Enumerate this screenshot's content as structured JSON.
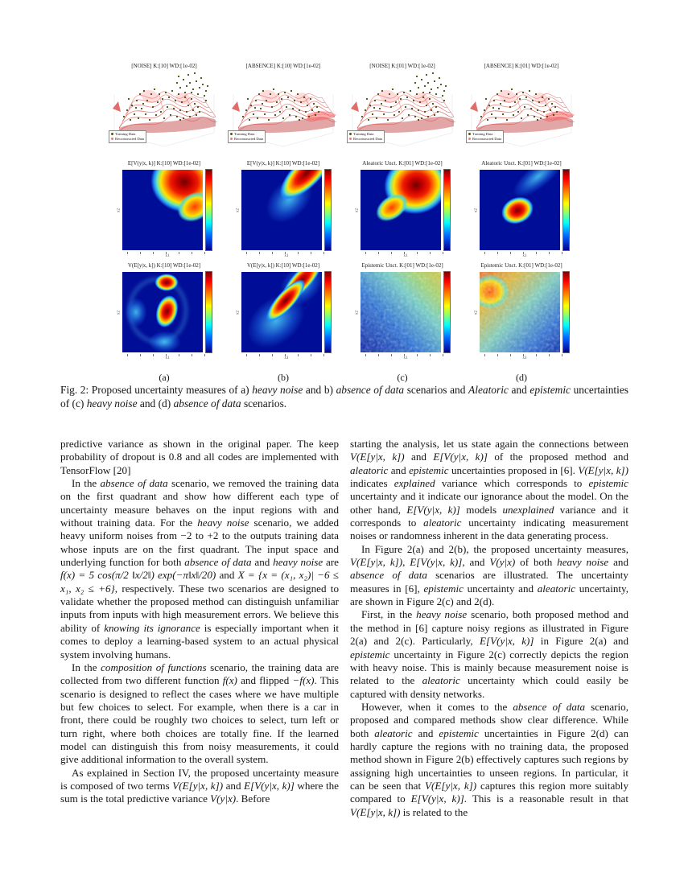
{
  "figure": {
    "columns": [
      {
        "label": "(a)",
        "surface_title": "[NOISE]  K:[10]  WD:[1e-02]",
        "mid_title": "E[V(y|x, k)]  K:[10]  WD:[1e-02]",
        "bottom_title": "V(E[y|x, k])  K:[10]  WD:[1e-02]"
      },
      {
        "label": "(b)",
        "surface_title": "[ABSENCE]  K:[10]  WD:[1e-02]",
        "mid_title": "E[V(y|x, k)]  K:[10]  WD:[1e-02]",
        "bottom_title": "V(E[y|x, k])  K:[10]  WD:[1e-02]"
      },
      {
        "label": "(c)",
        "surface_title": "[NOISE]  K:[01]  WD:[1e-02]",
        "mid_title": "Aleatoric Unct.  K:[01]  WD:[1e-02]",
        "bottom_title": "Epistemic Unct.  K:[01]  WD:[1e-02]"
      },
      {
        "label": "(d)",
        "surface_title": "[ABSENCE]  K:[01]  WD:[1e-02]",
        "mid_title": "Aleatoric Unct.  K:[01]  WD:[1e-02]",
        "bottom_title": "Epistemic Unct.  K:[01]  WD:[1e-02]"
      }
    ],
    "legend": {
      "training": "Training Data",
      "reconstructed": "Reconstructed Data"
    },
    "axis": {
      "x": "x1",
      "y": "x2"
    },
    "colors": {
      "jet_high": "#7f0000",
      "jet_mid": "#ffff00",
      "jet_low": "#00008f",
      "surface": "#cc2222",
      "training_dots": "#414f0b"
    }
  },
  "caption_parts": [
    "Fig. 2: Proposed uncertainty measures of a) ",
    {
      "i": "heavy noise"
    },
    " and b) ",
    {
      "i": "absence of data"
    },
    " scenarios and ",
    {
      "i": "Aleatoric"
    },
    " and ",
    {
      "i": "epistemic"
    },
    " uncertainties of (c) ",
    {
      "i": "heavy noise"
    },
    " and (d) ",
    {
      "i": "absence of data"
    },
    " scenarios."
  ],
  "body": {
    "left": [
      [
        "predictive variance as shown in the original paper. The keep probability of dropout is 0.8 and all codes are implemented with TensorFlow [20]"
      ],
      [
        "In the ",
        {
          "i": "absence of data"
        },
        " scenario, we removed the training data on the first quadrant and show how different each type of uncertainty measure behaves on the input regions with and without training data. For the ",
        {
          "i": "heavy noise"
        },
        " scenario, we added heavy uniform noises from −2 to +2 to the outputs training data whose inputs are on the first quadrant. The input space and underlying function for both ",
        {
          "i": "absence of data"
        },
        " and ",
        {
          "i": "heavy noise"
        },
        " are ",
        {
          "m": "f(x) = 5 cos(π/2 ‖x/2‖) exp(−π‖x‖/20)"
        },
        " and ",
        {
          "m": "X = {x = (x₁, x₂)| −6 ≤ x₁, x₂ ≤ +6}"
        },
        ", respectively. These two scenarios are designed to validate whether the proposed method can distinguish unfamiliar inputs from inputs with high measurement errors. We believe this ability of ",
        {
          "i": "knowing its ignorance"
        },
        " is especially important when it comes to deploy a learning-based system to an actual physical system involving humans."
      ],
      [
        "In the ",
        {
          "i": "composition of functions"
        },
        " scenario, the training data are collected from two different function ",
        {
          "m": "f(x)"
        },
        " and flipped ",
        {
          "m": "−f(x)"
        },
        ". This scenario is designed to reflect the cases where we have multiple but few choices to select. For example, when there is a car in front, there could be roughly two choices to select, turn left or turn right, where both choices are totally fine. If the learned model can distinguish this from noisy measurements, it could give additional information to the overall system."
      ],
      [
        "As explained in Section IV, the proposed uncertainty measure is composed of two terms ",
        {
          "m": "V(E[y|x, k])"
        },
        " and ",
        {
          "m": "E[V(y|x, k)]"
        },
        " where the sum is the total predictive variance ",
        {
          "m": "V(y|x)"
        },
        ". Before"
      ]
    ],
    "right": [
      [
        "starting the analysis, let us state again the connections between ",
        {
          "m": "V(E[y|x, k])"
        },
        " and ",
        {
          "m": "E[V(y|x, k)]"
        },
        " of the proposed method and ",
        {
          "i": "aleatoric"
        },
        " and ",
        {
          "i": "epistemic"
        },
        " uncertainties proposed in [6]. ",
        {
          "m": "V(E[y|x, k])"
        },
        " indicates ",
        {
          "i": "explained"
        },
        " variance which corresponds to ",
        {
          "i": "epistemic"
        },
        " uncertainty and it indicate our ignorance about the model. On the other hand, ",
        {
          "m": "E[V(y|x, k)]"
        },
        " models ",
        {
          "i": "unexplained"
        },
        " variance and it corresponds to ",
        {
          "i": "aleatoric"
        },
        " uncertainty indicating measurement noises or randomness inherent in the data generating process."
      ],
      [
        "In Figure 2(a) and 2(b), the proposed uncertainty measures, ",
        {
          "m": "V(E[y|x, k])"
        },
        ", ",
        {
          "m": "E[V(y|x, k)]"
        },
        ", and ",
        {
          "m": "V(y|x)"
        },
        " of both ",
        {
          "i": "heavy noise"
        },
        " and ",
        {
          "i": "absence of data"
        },
        " scenarios are illustrated. The uncertainty measures in [6], ",
        {
          "i": "epistemic"
        },
        " uncertainty and ",
        {
          "i": "aleatoric"
        },
        " uncertainty, are shown in Figure 2(c) and 2(d)."
      ],
      [
        "First, in the ",
        {
          "i": "heavy noise"
        },
        " scenario, both proposed method and the method in [6] capture noisy regions as illustrated in Figure 2(a) and 2(c). Particularly, ",
        {
          "m": "E[V(y|x, k)]"
        },
        " in Figure 2(a) and ",
        {
          "i": "epistemic"
        },
        " uncertainty in Figure 2(c) correctly depicts the region with heavy noise. This is mainly because measurement noise is related to the ",
        {
          "i": "aleatoric"
        },
        " uncertainty which could easily be captured with density networks."
      ],
      [
        "However, when it comes to the ",
        {
          "i": "absence of data"
        },
        " scenario, proposed and compared methods show clear difference. While both ",
        {
          "i": "aleatoric"
        },
        " and ",
        {
          "i": "epistemic"
        },
        " uncertainties in Figure 2(d) can hardly capture the regions with no training data, the proposed method shown in Figure 2(b) effectively captures such regions by assigning high uncertainties to unseen regions. In particular, it can be seen that ",
        {
          "m": "V(E[y|x, k])"
        },
        " captures this region more suitably compared to ",
        {
          "m": "E[V(y|x, k)]"
        },
        ". This is a reasonable result in that ",
        {
          "m": "V(E[y|x, k])"
        },
        " is related to the"
      ]
    ]
  }
}
